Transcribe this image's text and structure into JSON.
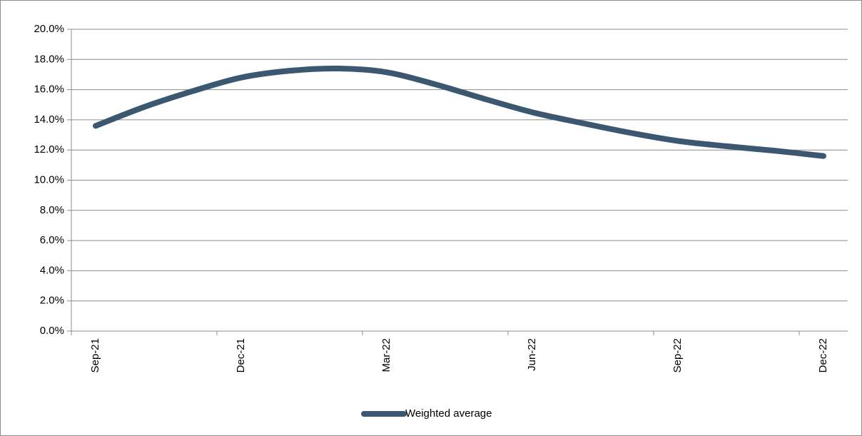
{
  "chart_data": {
    "type": "line",
    "categories": [
      "Sep-21",
      null,
      null,
      "Dec-21",
      null,
      null,
      "Mar-22",
      null,
      null,
      "Jun-22",
      null,
      null,
      "Sep-22",
      null,
      null,
      "Dec-22"
    ],
    "series": [
      {
        "name": "Weighted average",
        "color": "#3b5870",
        "values": [
          13.6,
          14.85,
          15.9,
          16.8,
          17.25,
          17.4,
          17.15,
          16.35,
          15.4,
          14.5,
          13.8,
          13.15,
          12.6,
          12.25,
          11.95,
          11.6
        ]
      }
    ],
    "ylim": [
      0,
      20
    ],
    "yticks": [
      {
        "value": 0,
        "label": "0.0%"
      },
      {
        "value": 2,
        "label": "2.0%"
      },
      {
        "value": 4,
        "label": "4.0%"
      },
      {
        "value": 6,
        "label": "6.0%"
      },
      {
        "value": 8,
        "label": "8.0%"
      },
      {
        "value": 10,
        "label": "10.0%"
      },
      {
        "value": 12,
        "label": "12.0%"
      },
      {
        "value": 14,
        "label": "14.0%"
      },
      {
        "value": 16,
        "label": "16.0%"
      },
      {
        "value": 18,
        "label": "18.0%"
      },
      {
        "value": 20,
        "label": "20.0%"
      }
    ],
    "grid": true,
    "smooth": true,
    "legend": "bottom"
  }
}
